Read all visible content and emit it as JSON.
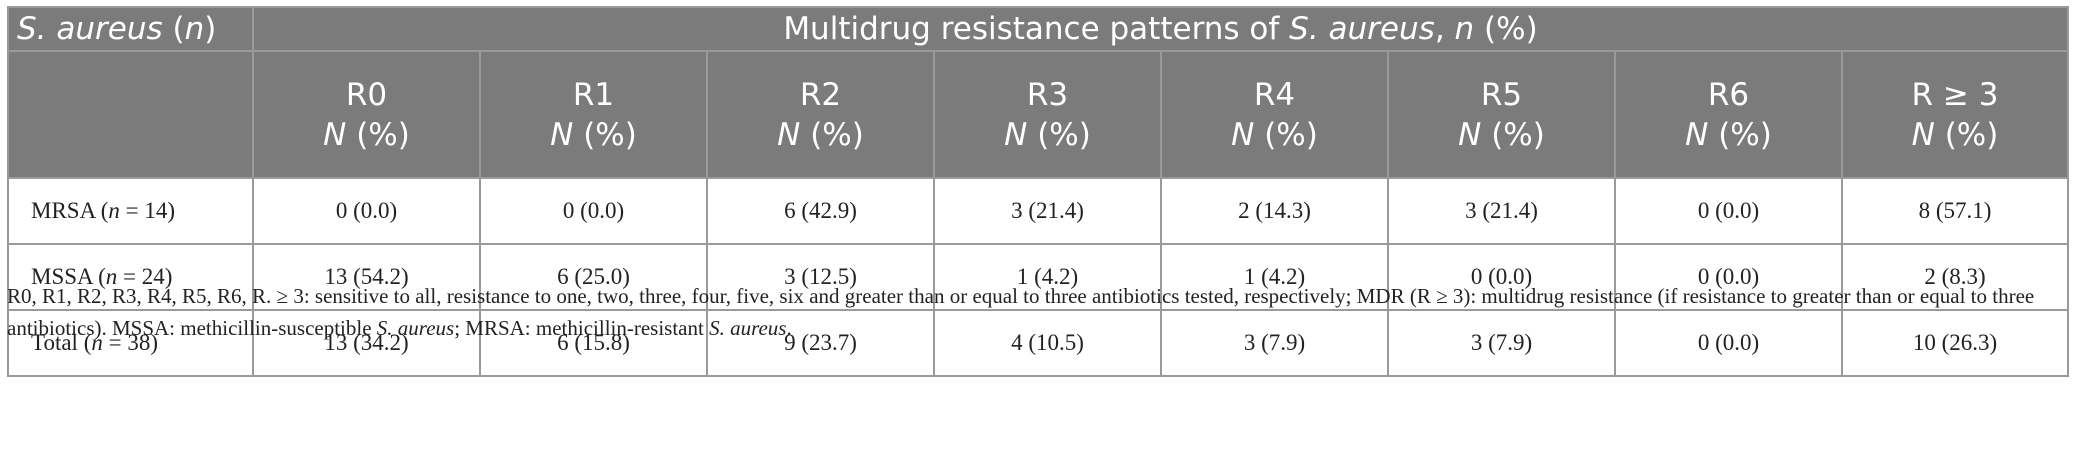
{
  "table": {
    "corner": {
      "pre": "S. aureus",
      "post": " (",
      "n": "n",
      "close": ")"
    },
    "group_header": {
      "pre": "Multidrug resistance patterns of ",
      "organism": "S. aureus",
      "mid": ", ",
      "n": "n",
      "post": " (%)"
    },
    "columns": [
      {
        "label": "R0",
        "sub_n": "N",
        "sub_pct": " (%)"
      },
      {
        "label": "R1",
        "sub_n": "N",
        "sub_pct": " (%)"
      },
      {
        "label": "R2",
        "sub_n": "N",
        "sub_pct": " (%)"
      },
      {
        "label": "R3",
        "sub_n": "N",
        "sub_pct": " (%)"
      },
      {
        "label": "R4",
        "sub_n": "N",
        "sub_pct": " (%)"
      },
      {
        "label": "R5",
        "sub_n": "N",
        "sub_pct": " (%)"
      },
      {
        "label": "R6",
        "sub_n": "N",
        "sub_pct": " (%)"
      },
      {
        "label": "R ≥ 3",
        "sub_n": "N",
        "sub_pct": " (%)"
      }
    ],
    "rows": [
      {
        "name": "MRSA",
        "open": " (",
        "n_var": "n",
        "n_val": " = 14)",
        "cells": [
          "0 (0.0)",
          "0 (0.0)",
          "6 (42.9)",
          "3 (21.4)",
          "2 (14.3)",
          "3 (21.4)",
          "0 (0.0)",
          "8 (57.1)"
        ]
      },
      {
        "name": "MSSA",
        "open": " (",
        "n_var": "n",
        "n_val": " = 24)",
        "cells": [
          "13 (54.2)",
          "6 (25.0)",
          "3 (12.5)",
          "1 (4.2)",
          "1 (4.2)",
          "0 (0.0)",
          "0 (0.0)",
          "2 (8.3)"
        ]
      },
      {
        "name": "Total",
        "open": " (",
        "n_var": "n",
        "n_val": " = 38)",
        "cells": [
          "13 (34.2)",
          "6 (15.8)",
          "9 (23.7)",
          "4 (10.5)",
          "3 (7.9)",
          "3 (7.9)",
          "0 (0.0)",
          "10 (26.3)"
        ]
      }
    ]
  },
  "footnote": {
    "part1": "R0, R1, R2, R3, R4, R5, R6, R. ≥ 3: sensitive to all, resistance to one, two, three, four, five, six and greater than or equal to three antibiotics tested, respectively; MDR (R ≥ 3): multidrug resistance (if resistance to greater than or equal to three antibiotics). MSSA: methicillin-susceptible ",
    "it1": "S. aureus",
    "part2": "; MRSA: methicillin-resistant ",
    "it2": "S. aureus",
    "part3": "."
  }
}
